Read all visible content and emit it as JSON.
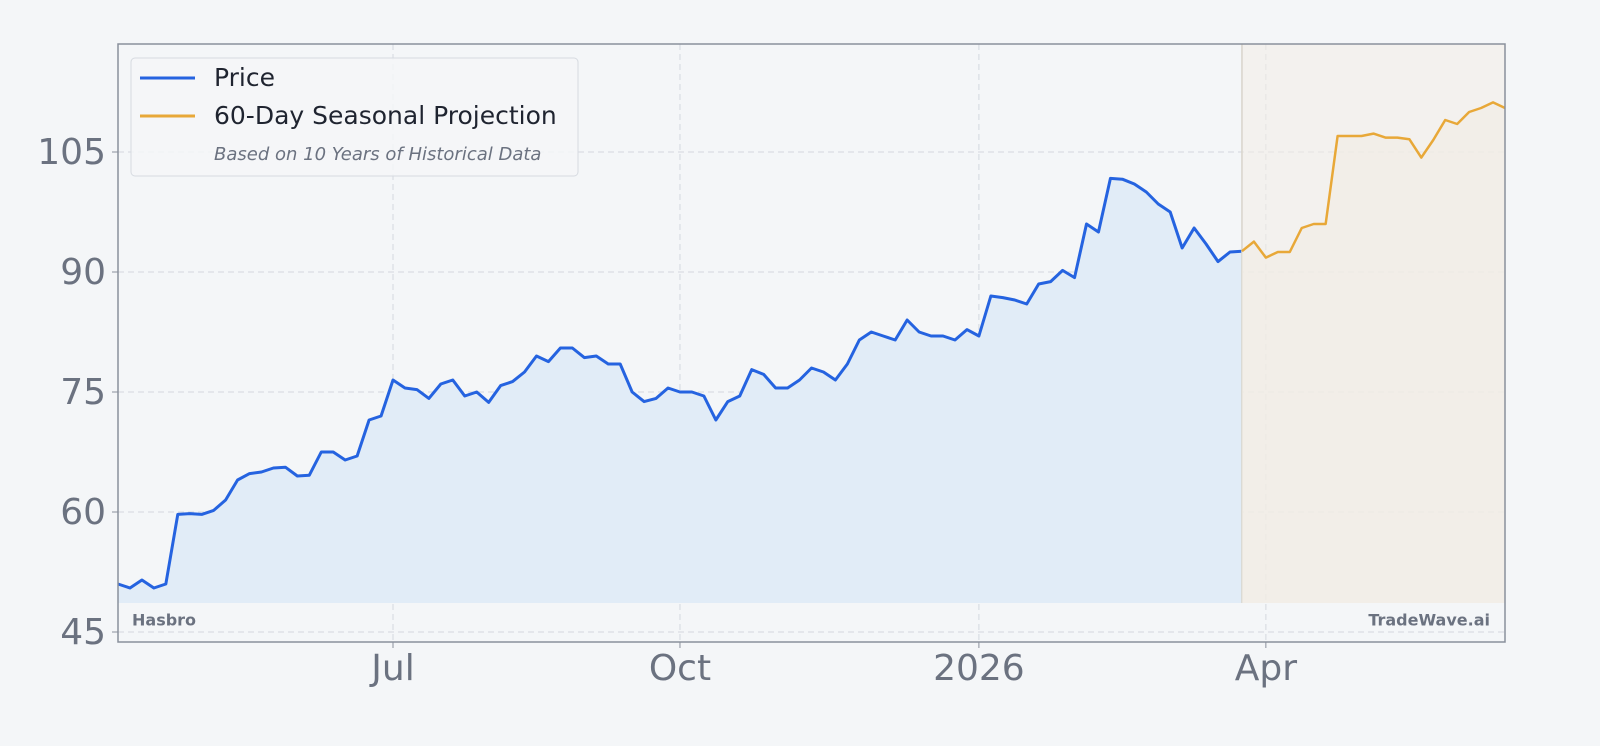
{
  "chart_data": {
    "type": "line",
    "legend_subtitle": "Based on 10 Years of Historical Data",
    "watermark_left": "Hasbro",
    "watermark_right": "TradeWave.ai",
    "legend": "upper left",
    "grid": true,
    "ylim": [
      43.75,
      118.5
    ],
    "yticks": [
      45,
      60,
      75,
      90,
      105
    ],
    "categories": [
      null,
      null,
      null,
      null,
      null,
      null,
      null,
      null,
      null,
      null,
      null,
      null,
      null,
      null,
      null,
      null,
      null,
      null,
      null,
      null,
      null,
      null,
      null,
      "Jul",
      null,
      null,
      null,
      null,
      null,
      null,
      null,
      null,
      null,
      null,
      null,
      null,
      null,
      null,
      null,
      null,
      null,
      null,
      null,
      null,
      null,
      null,
      null,
      "Oct",
      null,
      null,
      null,
      null,
      null,
      null,
      null,
      null,
      null,
      null,
      null,
      null,
      null,
      null,
      null,
      null,
      null,
      null,
      null,
      null,
      null,
      null,
      null,
      null,
      "2026",
      null,
      null,
      null,
      null,
      null,
      null,
      null,
      null,
      null,
      null,
      null,
      null,
      null,
      null,
      null,
      null,
      null,
      null,
      null,
      null,
      null,
      null,
      null,
      "Apr",
      null,
      null,
      null,
      null,
      null,
      null,
      null,
      null,
      null,
      null,
      null,
      null,
      null,
      null,
      null,
      null,
      null,
      null,
      null,
      null
    ],
    "series": [
      {
        "name": "Price",
        "color": "#2563e0",
        "fill": "#e1ecf7",
        "values": [
          51,
          50.5,
          51.5,
          50.5,
          51,
          59.7,
          59.8,
          59.7,
          60.2,
          61.5,
          64,
          64.8,
          65,
          65.5,
          65.6,
          64.5,
          64.6,
          67.5,
          67.5,
          66.5,
          67,
          71.5,
          72,
          76.5,
          75.5,
          75.3,
          74.2,
          76,
          76.5,
          74.5,
          75,
          73.7,
          75.8,
          76.3,
          77.5,
          79.5,
          78.8,
          80.5,
          80.5,
          79.3,
          79.5,
          78.5,
          78.5,
          75,
          73.8,
          74.2,
          75.5,
          75,
          75,
          74.5,
          71.5,
          73.8,
          74.5,
          77.8,
          77.2,
          75.5,
          75.5,
          76.5,
          78,
          77.5,
          76.5,
          78.5,
          81.5,
          82.5,
          82,
          81.5,
          84,
          82.5,
          82,
          82,
          81.5,
          82.8,
          82,
          87,
          86.8,
          86.5,
          86,
          88.5,
          88.8,
          90.2,
          89.3,
          96,
          95,
          101.7,
          101.6,
          101,
          100,
          98.5,
          97.5,
          93,
          95.5,
          93.5,
          91.3,
          92.5,
          92.6,
          null,
          null,
          null,
          null,
          null,
          null,
          null,
          null,
          null,
          null,
          null,
          null,
          null,
          null,
          null,
          null,
          null,
          null,
          null,
          null,
          null,
          null
        ]
      },
      {
        "name": "60-Day Seasonal Projection",
        "color": "#e8a838",
        "fill": "#f2ede5",
        "values": [
          null,
          null,
          null,
          null,
          null,
          null,
          null,
          null,
          null,
          null,
          null,
          null,
          null,
          null,
          null,
          null,
          null,
          null,
          null,
          null,
          null,
          null,
          null,
          null,
          null,
          null,
          null,
          null,
          null,
          null,
          null,
          null,
          null,
          null,
          null,
          null,
          null,
          null,
          null,
          null,
          null,
          null,
          null,
          null,
          null,
          null,
          null,
          null,
          null,
          null,
          null,
          null,
          null,
          null,
          null,
          null,
          null,
          null,
          null,
          null,
          null,
          null,
          null,
          null,
          null,
          null,
          null,
          null,
          null,
          null,
          null,
          null,
          null,
          null,
          null,
          null,
          null,
          null,
          null,
          null,
          null,
          null,
          null,
          null,
          null,
          null,
          null,
          null,
          null,
          null,
          null,
          null,
          null,
          null,
          92.6,
          93.8,
          91.8,
          92.5,
          92.5,
          95.5,
          96,
          96,
          107,
          107,
          107,
          107.3,
          106.8,
          106.8,
          106.6,
          104.3,
          106.5,
          109,
          108.5,
          110,
          110.5,
          111.2,
          110.5
        ]
      }
    ]
  }
}
